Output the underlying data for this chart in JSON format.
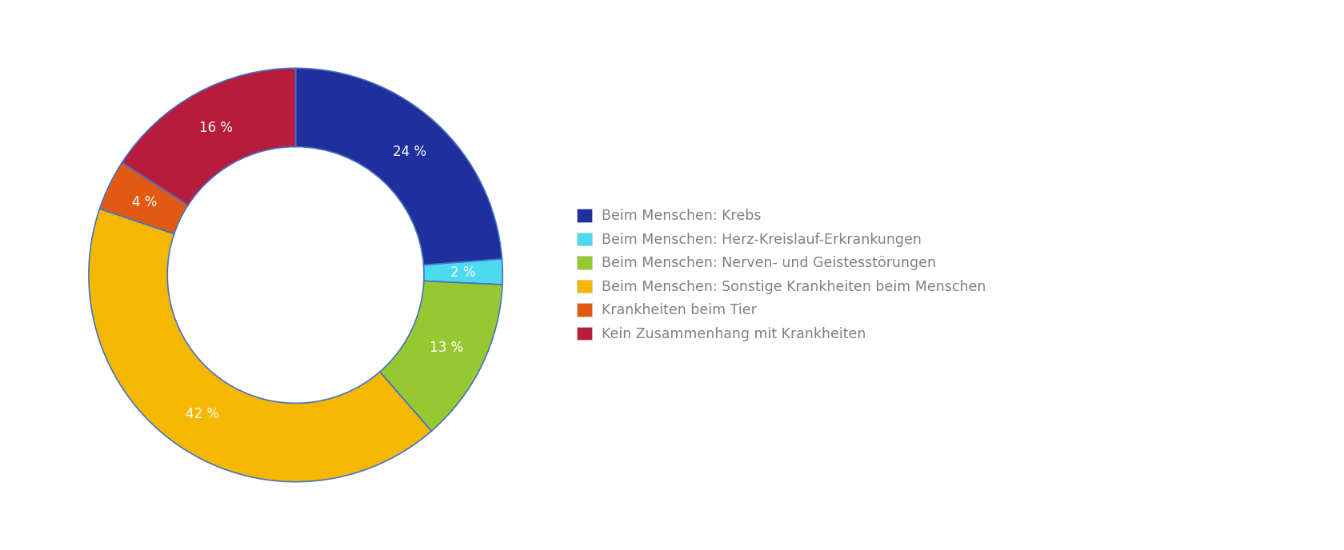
{
  "labels": [
    "Beim Menschen: Krebs",
    "Beim Menschen: Herz-Kreislauf-Erkrankungen",
    "Beim Menschen: Nerven- und Geistesstörungen",
    "Beim Menschen: Sonstige Krankheiten beim Menschen",
    "Krankheiten beim Tier",
    "Kein Zusammenhang mit Krankheiten"
  ],
  "values": [
    24,
    2,
    13,
    42,
    4,
    16
  ],
  "colors": [
    "#1f2f9c",
    "#4dd9f0",
    "#96c832",
    "#f5b800",
    "#e05a14",
    "#b81c3c"
  ],
  "pct_labels": [
    "24 %",
    "2 %",
    "13 %",
    "42 %",
    "4 %",
    "16 %"
  ],
  "text_color": "#ffffff",
  "legend_text_color": "#808080",
  "background_color": "#ffffff",
  "wedge_edge_color": "#4472c4",
  "wedge_linewidth": 1.2,
  "donut_width": 0.38,
  "figsize": [
    16.8,
    6.88
  ],
  "dpi": 100,
  "legend_fontsize": 12.5,
  "pct_fontsize": 12
}
